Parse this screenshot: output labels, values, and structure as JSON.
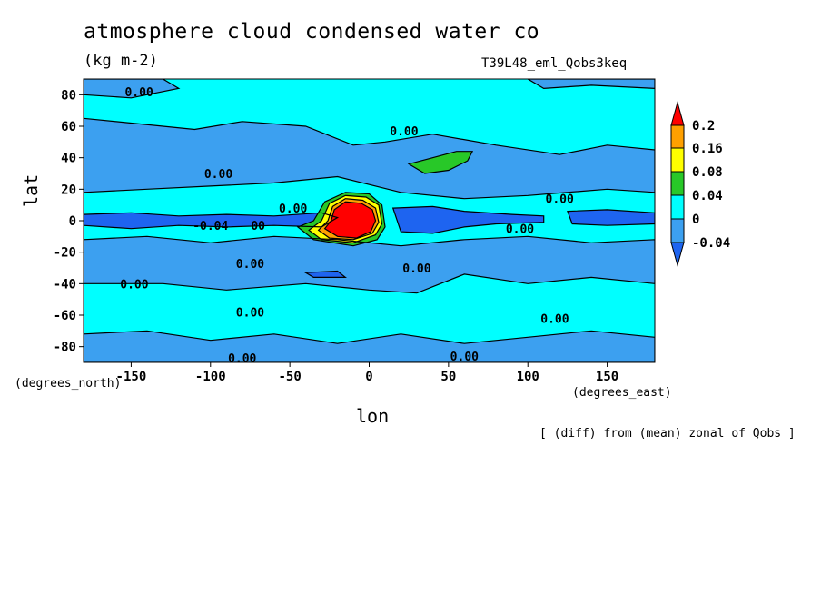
{
  "chart_data": {
    "type": "heatmap",
    "title": "atmosphere cloud condensed water co",
    "units_label": "(kg m-2)",
    "run_label": "T39L48_eml_Qobs3keq",
    "xlabel": "lon",
    "ylabel": "lat",
    "x_units": "(degrees_east)",
    "y_units": "(degrees_north)",
    "footnote": "[ (diff) from (mean) zonal of Qobs ]",
    "xlim": [
      -180,
      180
    ],
    "ylim": [
      -90,
      90
    ],
    "x_ticks": [
      -150,
      -100,
      -50,
      0,
      50,
      100,
      150
    ],
    "y_ticks": [
      80,
      60,
      40,
      20,
      0,
      -20,
      -40,
      -60,
      -80
    ],
    "x_tick_labels": [
      "-150",
      "-100",
      "-50",
      "0",
      "50",
      "100",
      "150"
    ],
    "y_tick_labels": [
      "80",
      "60",
      "40",
      "20",
      "0",
      "-20",
      "-40",
      "-60",
      "-80"
    ],
    "levels": [
      -0.04,
      0,
      0.04,
      0.08,
      0.16,
      0.2
    ],
    "colorbar_labels": [
      "0.2",
      "0.16",
      "0.08",
      "0.04",
      "0",
      "-0.04"
    ],
    "colors": {
      "below_-0.04": "#1e64f0",
      "-0.04_to_0": "#3ca0f0",
      "0_to_0.04": "#00ffff",
      "0.04_to_0.08": "#28c828",
      "0.08_to_0.16": "#ffff00",
      "0.16_to_0.2": "#ffa000",
      "above_0.2": "#ff0000"
    },
    "contour_labels": [
      {
        "text": "0.00",
        "lon": -145,
        "lat": 82
      },
      {
        "text": "0.00",
        "lon": 22,
        "lat": 57
      },
      {
        "text": "0.00",
        "lon": -95,
        "lat": 30
      },
      {
        "text": "-0.04",
        "lon": -100,
        "lat": -3
      },
      {
        "text": "00",
        "lon": -70,
        "lat": -3
      },
      {
        "text": "0.00",
        "lon": -48,
        "lat": 8
      },
      {
        "text": "0.00",
        "lon": 120,
        "lat": 14
      },
      {
        "text": "0.00",
        "lon": 95,
        "lat": -5
      },
      {
        "text": "0.00",
        "lon": -75,
        "lat": -27
      },
      {
        "text": "0.00",
        "lon": 30,
        "lat": -30
      },
      {
        "text": "0.00",
        "lon": -148,
        "lat": -40
      },
      {
        "text": "0.00",
        "lon": -75,
        "lat": -58
      },
      {
        "text": "0.00",
        "lon": 117,
        "lat": -62
      },
      {
        "text": "0.00",
        "lon": -80,
        "lat": -87
      },
      {
        "text": "0.00",
        "lon": 60,
        "lat": -86
      }
    ]
  }
}
